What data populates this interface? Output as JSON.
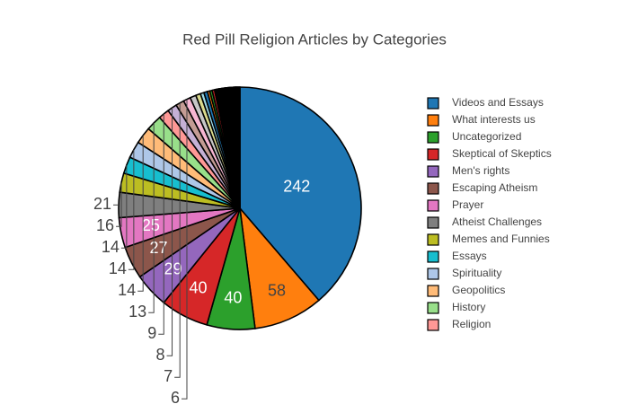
{
  "chart_data": {
    "type": "pie",
    "title": "Red Pill Religion Articles by Categories",
    "categories": [
      "Videos and Essays",
      "What interests us",
      "Uncategorized",
      "Skeptical of Skeptics",
      "Men's rights",
      "Escaping Atheism",
      "Prayer",
      "Atheist Challenges",
      "Memes and Funnies",
      "Essays",
      "Spirituality",
      "Geopolitics",
      "History",
      "Religion",
      null,
      null,
      null,
      null,
      null,
      null,
      null,
      null,
      null,
      null,
      null,
      null,
      null,
      null,
      null,
      null,
      null,
      null,
      null,
      null,
      null,
      null,
      null,
      null,
      null,
      null,
      null,
      null,
      null,
      null,
      null
    ],
    "values": [
      242,
      58,
      40,
      40,
      29,
      27,
      25,
      21,
      16,
      14,
      14,
      14,
      13,
      9,
      8,
      7,
      6,
      5,
      4,
      3,
      3,
      2,
      2,
      2,
      1,
      1,
      1,
      1,
      1,
      1,
      1,
      1,
      1,
      1,
      1,
      1,
      1,
      1,
      1,
      1,
      1,
      1,
      1,
      1,
      1
    ],
    "colors": [
      "#1f77b4",
      "#ff7f0e",
      "#2ca02c",
      "#d62728",
      "#9467bd",
      "#8c564b",
      "#e377c2",
      "#7f7f7f",
      "#bcbd22",
      "#17becf",
      "#aec7e8",
      "#ffbb78",
      "#98df8a",
      "#ff9896",
      "#c5b0d5",
      "#c49c94",
      "#f7b6d2",
      "#c7c7c7",
      "#dbdb8d",
      "#9edae5",
      "#1f77b4",
      "#ff7f0e",
      "#2ca02c",
      "#d62728",
      "#9467bd",
      "#8c564b",
      "#e377c2",
      "#7f7f7f",
      "#bcbd22",
      "#17becf",
      "#aec7e8",
      "#ffbb78",
      "#98df8a",
      "#ff9896",
      "#c5b0d5",
      "#c49c94",
      "#f7b6d2",
      "#c7c7c7",
      "#dbdb8d",
      "#9edae5",
      "#1f77b4",
      "#ff7f0e",
      "#2ca02c",
      "#d62728",
      "#9467bd"
    ],
    "direction": "clockwise"
  }
}
